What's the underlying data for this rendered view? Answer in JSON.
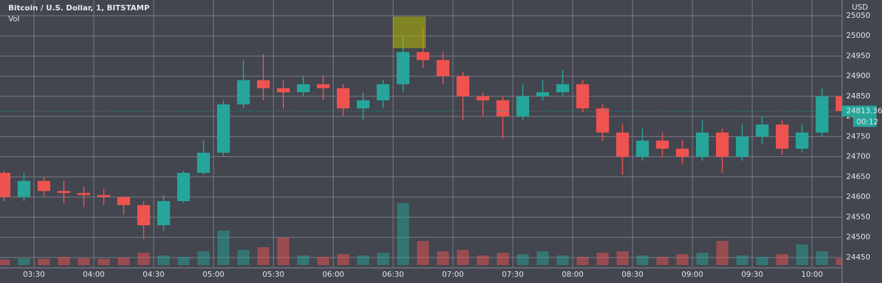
{
  "chart_data": {
    "type": "candlestick",
    "title": "Bitcoin / U.S. Dollar, 1, BITSTAMP",
    "volume_label": "Vol",
    "currency": "USD",
    "x": [
      "03:10",
      "03:20",
      "03:30",
      "03:40",
      "03:50",
      "04:00",
      "04:10",
      "04:20",
      "04:30",
      "04:40",
      "04:50",
      "05:00",
      "05:10",
      "05:20",
      "05:30",
      "05:40",
      "05:50",
      "06:00",
      "06:10",
      "06:20",
      "06:30",
      "06:40",
      "06:50",
      "07:00",
      "07:10",
      "07:20",
      "07:30",
      "07:40",
      "07:50",
      "08:00",
      "08:10",
      "08:20",
      "08:30",
      "08:40",
      "08:50",
      "09:00",
      "09:10",
      "09:20",
      "09:30",
      "09:40",
      "09:50",
      "10:00",
      "10:10"
    ],
    "open": [
      24660,
      24600,
      24640,
      24615,
      24610,
      24605,
      24600,
      24580,
      24530,
      24590,
      24660,
      24710,
      24830,
      24890,
      24870,
      24860,
      24880,
      24870,
      24820,
      24840,
      24880,
      24960,
      24940,
      24900,
      24850,
      24840,
      24800,
      24850,
      24860,
      24880,
      24820,
      24760,
      24700,
      24740,
      24720,
      24700,
      24760,
      24700,
      24750,
      24780,
      24720,
      24760,
      24850
    ],
    "high": [
      24665,
      24660,
      24650,
      24640,
      24625,
      24620,
      24600,
      24590,
      24605,
      24665,
      24740,
      24840,
      24940,
      24955,
      24890,
      24900,
      24900,
      24880,
      24860,
      24890,
      25000,
      25020,
      24960,
      24910,
      24860,
      24850,
      24880,
      24890,
      24915,
      24890,
      24830,
      24780,
      24770,
      24760,
      24740,
      24790,
      24770,
      24780,
      24800,
      24790,
      24780,
      24870,
      24860
    ],
    "low": [
      24590,
      24590,
      24600,
      24585,
      24575,
      24580,
      24555,
      24495,
      24515,
      24585,
      24655,
      24700,
      24820,
      24840,
      24820,
      24850,
      24840,
      24800,
      24790,
      24820,
      24860,
      24920,
      24880,
      24790,
      24800,
      24745,
      24790,
      24840,
      24850,
      24810,
      24740,
      24655,
      24690,
      24700,
      24680,
      24690,
      24660,
      24690,
      24730,
      24705,
      24710,
      24750,
      24800
    ],
    "close": [
      24600,
      24640,
      24615,
      24610,
      24605,
      24600,
      24580,
      24530,
      24590,
      24660,
      24710,
      24830,
      24890,
      24870,
      24860,
      24880,
      24870,
      24820,
      24840,
      24880,
      24960,
      24940,
      24900,
      24850,
      24840,
      24800,
      24850,
      24860,
      24880,
      24820,
      24760,
      24700,
      24740,
      24720,
      24700,
      24760,
      24700,
      24750,
      24780,
      24720,
      24760,
      24850,
      24813.36
    ],
    "volume": [
      8,
      10,
      9,
      12,
      10,
      9,
      11,
      18,
      14,
      12,
      20,
      50,
      22,
      26,
      40,
      14,
      12,
      16,
      14,
      18,
      90,
      35,
      20,
      22,
      14,
      18,
      16,
      20,
      14,
      12,
      18,
      20,
      14,
      12,
      16,
      18,
      35,
      14,
      12,
      16,
      30,
      20,
      10
    ],
    "up_color": "#26a69a",
    "down_color": "#ef5350",
    "xlim": [
      "03:13",
      "10:15"
    ],
    "xticks": [
      "03:30",
      "04:00",
      "04:30",
      "05:00",
      "05:30",
      "06:00",
      "06:30",
      "07:00",
      "07:30",
      "08:00",
      "08:30",
      "09:00",
      "09:30",
      "10:00"
    ],
    "ylim": [
      24426,
      25089
    ],
    "yticks": [
      24450,
      24500,
      24550,
      24600,
      24650,
      24700,
      24750,
      24800,
      24850,
      24900,
      24950,
      25000,
      25050
    ],
    "volume_lim": [
      0,
      100
    ],
    "last_price": 24813.36,
    "last_price_label": "24813.36",
    "countdown": "00:12",
    "grid": true
  }
}
